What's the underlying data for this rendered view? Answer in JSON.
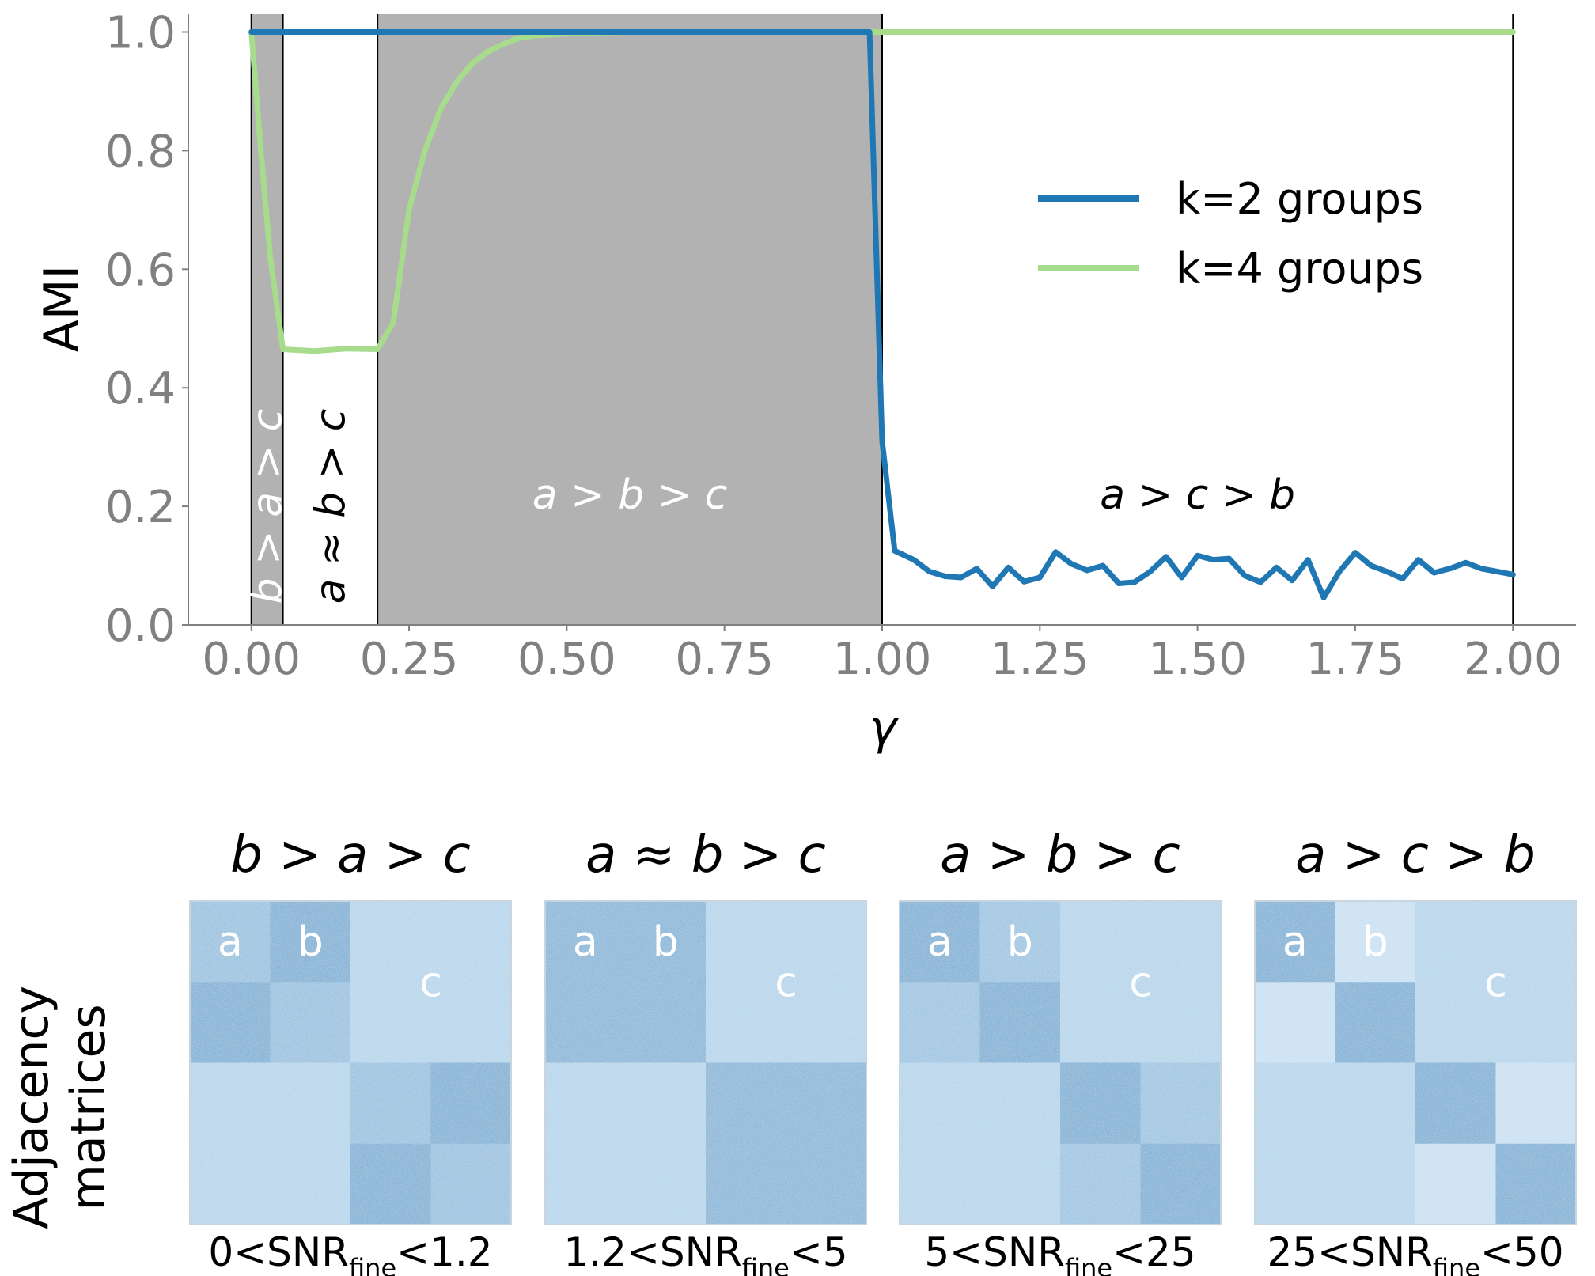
{
  "chart_data": [
    {
      "type": "line",
      "xlabel": "γ",
      "ylabel": "AMI",
      "xlim": [
        -0.1,
        2.1
      ],
      "ylim": [
        0.0,
        1.03
      ],
      "xticks": [
        "0.00",
        "0.25",
        "0.50",
        "0.75",
        "1.00",
        "1.25",
        "1.50",
        "1.75",
        "2.00"
      ],
      "yticks": [
        "0.0",
        "0.2",
        "0.4",
        "0.6",
        "0.8",
        "1.0"
      ],
      "grid": false,
      "legend_position": "center-right",
      "regimes": [
        {
          "label": "b > a > c",
          "from": 0.0,
          "to": 0.05,
          "shaded": true,
          "orientation": "vertical"
        },
        {
          "label": "a ≈ b > c",
          "from": 0.05,
          "to": 0.2,
          "shaded": false,
          "orientation": "vertical"
        },
        {
          "label": "a > b > c",
          "from": 0.2,
          "to": 1.0,
          "shaded": true,
          "orientation": "horizontal"
        },
        {
          "label": "a > c > b",
          "from": 1.0,
          "to": 2.0,
          "shaded": false,
          "orientation": "horizontal"
        }
      ],
      "series": [
        {
          "name": "k=2 groups",
          "color": "#1f77b4",
          "x": [
            0.0,
            0.98,
            1.0,
            1.02,
            1.05,
            1.075,
            1.1,
            1.125,
            1.15,
            1.175,
            1.2,
            1.225,
            1.25,
            1.275,
            1.3,
            1.325,
            1.35,
            1.375,
            1.4,
            1.425,
            1.45,
            1.475,
            1.5,
            1.525,
            1.55,
            1.575,
            1.6,
            1.625,
            1.65,
            1.675,
            1.7,
            1.725,
            1.75,
            1.775,
            1.8,
            1.825,
            1.85,
            1.875,
            1.9,
            1.925,
            1.95,
            1.975,
            2.0
          ],
          "y": [
            1.0,
            1.0,
            0.31,
            0.125,
            0.11,
            0.09,
            0.082,
            0.08,
            0.095,
            0.065,
            0.097,
            0.073,
            0.08,
            0.123,
            0.103,
            0.092,
            0.1,
            0.07,
            0.072,
            0.09,
            0.115,
            0.08,
            0.117,
            0.11,
            0.112,
            0.083,
            0.072,
            0.097,
            0.075,
            0.11,
            0.046,
            0.09,
            0.122,
            0.1,
            0.09,
            0.078,
            0.11,
            0.088,
            0.095,
            0.105,
            0.095,
            0.09,
            0.085
          ]
        },
        {
          "name": "k=4 groups",
          "color": "#a6dc8c",
          "x": [
            0.0,
            0.015,
            0.03,
            0.05,
            0.1,
            0.15,
            0.2,
            0.225,
            0.25,
            0.275,
            0.3,
            0.325,
            0.35,
            0.375,
            0.4,
            0.425,
            0.45,
            0.5,
            0.55,
            0.6,
            0.7,
            1.0,
            2.0
          ],
          "y": [
            1.0,
            0.8,
            0.62,
            0.465,
            0.462,
            0.466,
            0.465,
            0.51,
            0.7,
            0.8,
            0.87,
            0.915,
            0.947,
            0.967,
            0.98,
            0.99,
            0.994,
            0.997,
            0.999,
            1.0,
            1.0,
            1.0,
            1.0
          ]
        }
      ]
    },
    {
      "type": "heatmap",
      "ylabel": "Adjacency matrices",
      "panels": [
        {
          "title": "b > a > c",
          "caption_pre": "0<SNR",
          "caption_sub": "fine",
          "caption_post": "<1.2",
          "blocks": [
            {
              "label": "a",
              "shown": true,
              "start": 0.0,
              "size": 0.25
            },
            {
              "label": "b",
              "shown": true,
              "start": 0.25,
              "size": 0.25
            },
            {
              "label": "c",
              "shown": true,
              "start": 0.5,
              "size": 0.5
            }
          ],
          "cells": [
            [
              0.65,
              0.95,
              0.35,
              0.35
            ],
            [
              0.95,
              0.65,
              0.35,
              0.35
            ],
            [
              0.35,
              0.35,
              0.65,
              0.95
            ],
            [
              0.35,
              0.35,
              0.95,
              0.65
            ]
          ]
        },
        {
          "title": "a ≈ b > c",
          "caption_pre": "1.2<SNR",
          "caption_sub": "fine",
          "caption_post": "<5",
          "blocks": [
            {
              "label": "a",
              "shown": true,
              "start": 0.0,
              "size": 0.25
            },
            {
              "label": "b",
              "shown": true,
              "start": 0.25,
              "size": 0.25
            },
            {
              "label": "c",
              "shown": true,
              "start": 0.5,
              "size": 0.5
            }
          ],
          "cells": [
            [
              0.85,
              0.85,
              0.35,
              0.35
            ],
            [
              0.85,
              0.85,
              0.35,
              0.35
            ],
            [
              0.35,
              0.35,
              0.85,
              0.85
            ],
            [
              0.35,
              0.35,
              0.85,
              0.85
            ]
          ]
        },
        {
          "title": "a > b > c",
          "caption_pre": "5<SNR",
          "caption_sub": "fine",
          "caption_post": "<25",
          "blocks": [
            {
              "label": "a",
              "shown": true,
              "start": 0.0,
              "size": 0.25
            },
            {
              "label": "b",
              "shown": true,
              "start": 0.25,
              "size": 0.25
            },
            {
              "label": "c",
              "shown": true,
              "start": 0.5,
              "size": 0.5
            }
          ],
          "cells": [
            [
              0.95,
              0.6,
              0.35,
              0.35
            ],
            [
              0.6,
              0.95,
              0.35,
              0.35
            ],
            [
              0.35,
              0.35,
              0.95,
              0.6
            ],
            [
              0.35,
              0.35,
              0.6,
              0.95
            ]
          ]
        },
        {
          "title": "a > c > b",
          "caption_pre": "25<SNR",
          "caption_sub": "fine",
          "caption_post": "<50",
          "blocks": [
            {
              "label": "a",
              "shown": true,
              "start": 0.0,
              "size": 0.25
            },
            {
              "label": "b",
              "shown": true,
              "start": 0.25,
              "size": 0.25
            },
            {
              "label": "c",
              "shown": true,
              "start": 0.5,
              "size": 0.5
            }
          ],
          "cells": [
            [
              0.95,
              0.15,
              0.35,
              0.35
            ],
            [
              0.15,
              0.95,
              0.35,
              0.35
            ],
            [
              0.35,
              0.35,
              0.95,
              0.15
            ],
            [
              0.35,
              0.35,
              0.15,
              0.95
            ]
          ]
        }
      ]
    }
  ]
}
